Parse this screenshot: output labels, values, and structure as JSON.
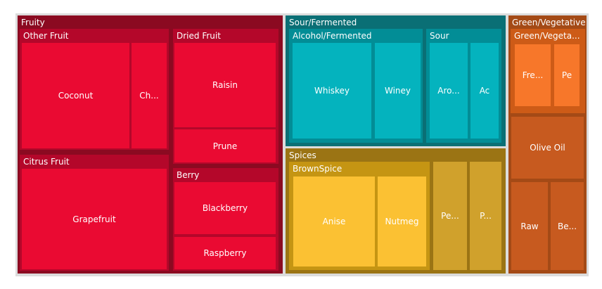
{
  "chart_data": {
    "type": "treemap",
    "title": "",
    "groups": [
      {
        "name": "Fruity",
        "color": "#8b0a21",
        "children": [
          {
            "name": "Other Fruit",
            "color": "#b4072a",
            "children": [
              {
                "name": "Coconut",
                "label": "Coconut",
                "value": 3.0,
                "color": "#ea0a32"
              },
              {
                "name": "Cherry",
                "label": "Ch...",
                "value": 1.0,
                "color": "#ea0a32"
              }
            ]
          },
          {
            "name": "Citrus Fruit",
            "color": "#b4072a",
            "children": [
              {
                "name": "Grapefruit",
                "label": "Grapefruit",
                "value": 3.9,
                "color": "#ea0a32"
              }
            ]
          },
          {
            "name": "Dried Fruit",
            "color": "#b4072a",
            "children": [
              {
                "name": "Raisin",
                "label": "Raisin",
                "value": 2.4,
                "color": "#ea0a32"
              },
              {
                "name": "Prune",
                "label": "Prune",
                "value": 1.0,
                "color": "#ea0a32"
              }
            ]
          },
          {
            "name": "Berry",
            "color": "#b4072a",
            "children": [
              {
                "name": "Blackberry",
                "label": "Blackberry",
                "value": 1.6,
                "color": "#ea0a32"
              },
              {
                "name": "Raspberry",
                "label": "Raspberry",
                "value": 0.9,
                "color": "#ea0a32"
              }
            ]
          }
        ]
      },
      {
        "name": "Sour/Fermented",
        "color": "#0a6f75",
        "children": [
          {
            "name": "Alcohol/Fermented",
            "color": "#028d96",
            "children": [
              {
                "name": "Whiskey",
                "label": "Whiskey",
                "value": 1.8,
                "color": "#04b3be"
              },
              {
                "name": "Winey",
                "label": "Winey",
                "value": 1.0,
                "color": "#04b3be"
              }
            ]
          },
          {
            "name": "Sour",
            "color": "#028d96",
            "children": [
              {
                "name": "Aromatic",
                "label": "Aro...",
                "value": 0.9,
                "color": "#04b3be"
              },
              {
                "name": "Acetic",
                "label": "Ac",
                "value": 0.6,
                "color": "#04b3be"
              }
            ]
          }
        ]
      },
      {
        "name": "Spices",
        "color": "#9b7414",
        "children": [
          {
            "name": "BrownSpice",
            "color": "#c59513",
            "children": [
              {
                "name": "Anise",
                "label": "Anise",
                "value": 2.1,
                "color": "#fbc133"
              },
              {
                "name": "Nutmeg",
                "label": "Nutmeg",
                "value": 1.3,
                "color": "#fbc133"
              }
            ]
          },
          {
            "name": "Pepper",
            "label": "Pe...",
            "value": 0.9,
            "color": "#d0a12c"
          },
          {
            "name": "Pungent",
            "label": "P...",
            "value": 0.8,
            "color": "#d0a12c"
          }
        ]
      },
      {
        "name": "Green/Vegetative",
        "color": "#a44a16",
        "children": [
          {
            "name": "Green/Vegetative",
            "label": "Green/Vegeta...",
            "color": "#cd5b17",
            "children": [
              {
                "name": "Fresh",
                "label": "Fre...",
                "value": 0.5,
                "color": "#f7772a"
              },
              {
                "name": "Peapod",
                "label": "Pe",
                "value": 0.4,
                "color": "#f7772a"
              }
            ]
          },
          {
            "name": "Olive Oil",
            "label": "Olive Oil",
            "value": 1.0,
            "color": "#c75a1f"
          },
          {
            "name": "Raw",
            "label": "Raw",
            "value": 0.7,
            "color": "#c75a1f"
          },
          {
            "name": "Beany",
            "label": "Be...",
            "value": 0.6,
            "color": "#c75a1f"
          }
        ]
      }
    ]
  }
}
